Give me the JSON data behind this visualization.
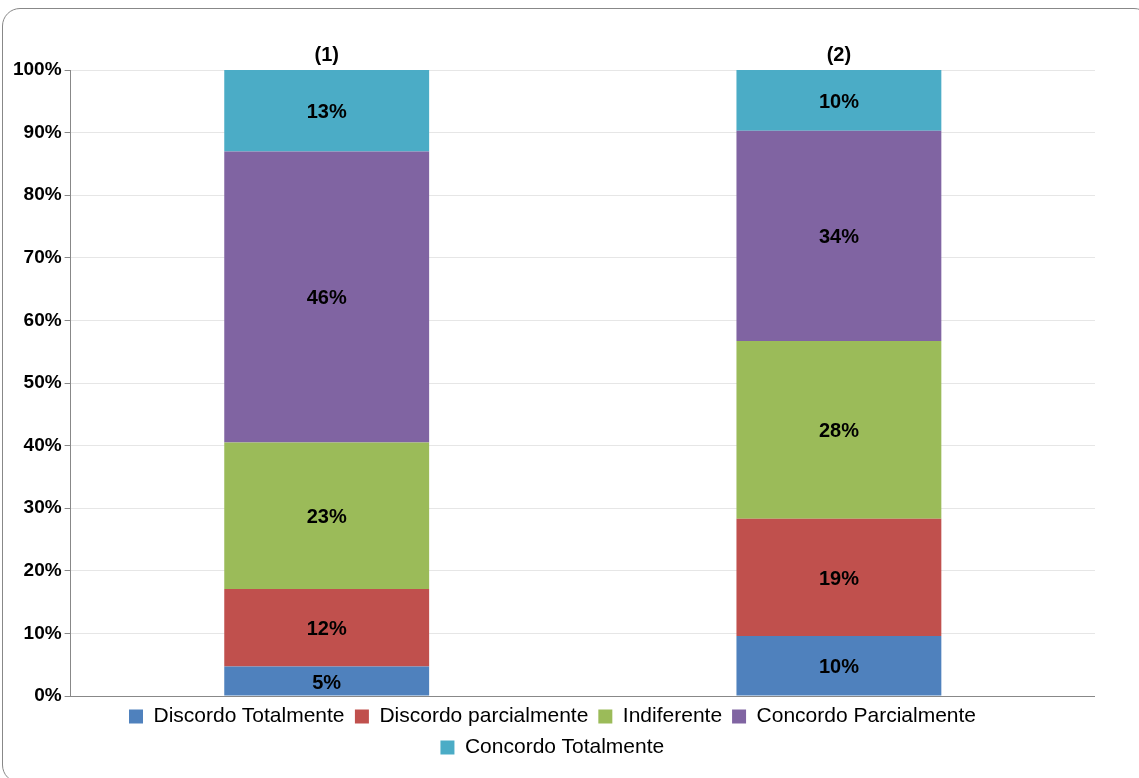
{
  "chart_data": {
    "type": "bar",
    "stacked": true,
    "categories": [
      "(1)",
      "(2)"
    ],
    "series": [
      {
        "name": "Discordo Totalmente",
        "color": "#4f81bd",
        "values": [
          4.7,
          9.6
        ],
        "value_labels": [
          "5%",
          "10%"
        ]
      },
      {
        "name": "Discordo parcialmente",
        "color": "#c0504d",
        "values": [
          12.4,
          18.7
        ],
        "value_labels": [
          "12%",
          "19%"
        ]
      },
      {
        "name": "Indiferente",
        "color": "#9bbb59",
        "values": [
          23.4,
          28.4
        ],
        "value_labels": [
          "23%",
          "28%"
        ]
      },
      {
        "name": "Concordo Parcialmente",
        "color": "#8064a2",
        "values": [
          46.5,
          33.6
        ],
        "value_labels": [
          "46%",
          "34%"
        ]
      },
      {
        "name": "Concordo Totalmente",
        "color": "#4bacc6",
        "values": [
          13.0,
          9.7
        ],
        "value_labels": [
          "13%",
          "10%"
        ]
      }
    ],
    "ylim": [
      0,
      100
    ],
    "yticks": [
      {
        "value": 0,
        "label": "0%"
      },
      {
        "value": 10,
        "label": "10%"
      },
      {
        "value": 20,
        "label": "20%"
      },
      {
        "value": 30,
        "label": "30%"
      },
      {
        "value": 40,
        "label": "40%"
      },
      {
        "value": 50,
        "label": "50%"
      },
      {
        "value": 60,
        "label": "60%"
      },
      {
        "value": 70,
        "label": "70%"
      },
      {
        "value": 80,
        "label": "80%"
      },
      {
        "value": 90,
        "label": "90%"
      },
      {
        "value": 100,
        "label": "100%"
      }
    ],
    "grid": "y",
    "legend": "bottom"
  }
}
